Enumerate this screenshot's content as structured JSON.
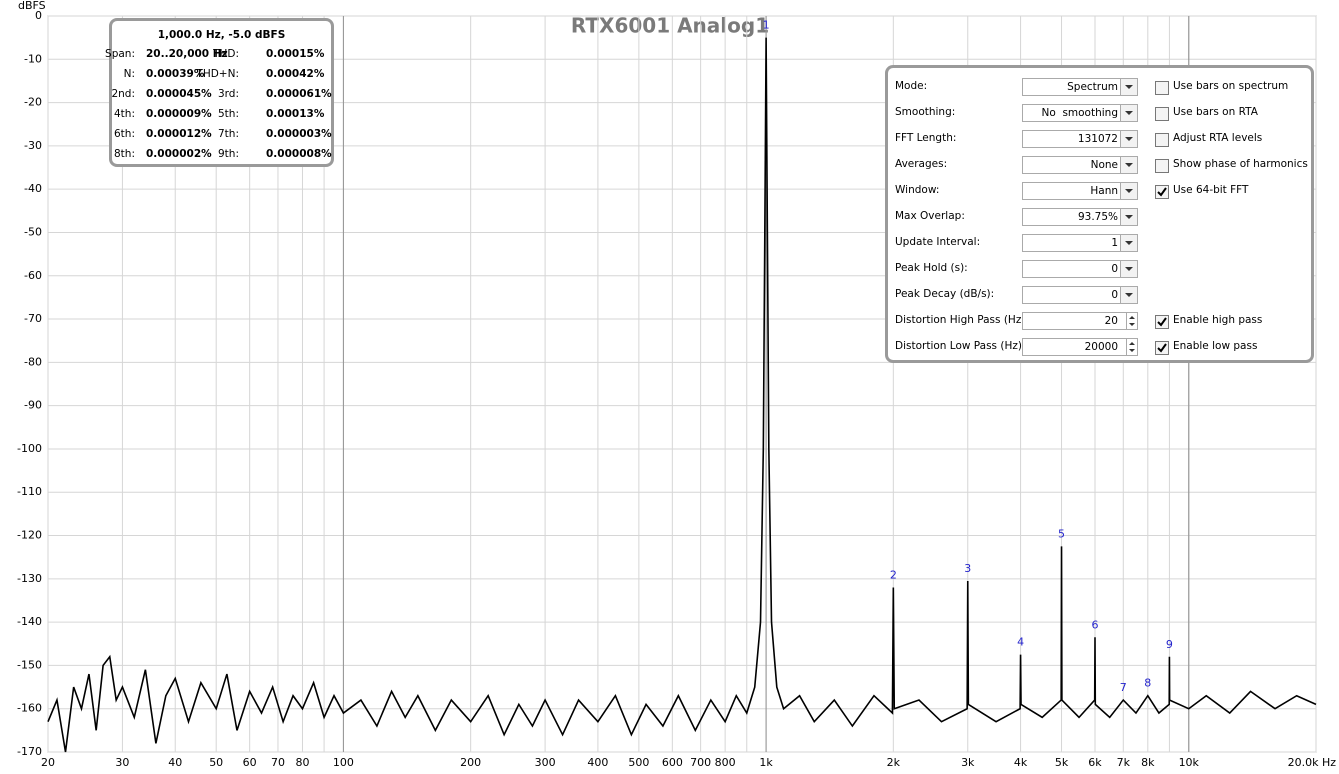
{
  "chart_data": {
    "type": "line",
    "title": "RTX6001 Analog1",
    "y_label": "dBFS",
    "log_x": true,
    "grid": true,
    "xlim": [
      20,
      20000
    ],
    "ylim": [
      -170,
      0
    ],
    "xticks": [
      20,
      30,
      40,
      50,
      60,
      70,
      80,
      100,
      200,
      300,
      400,
      500,
      600,
      700,
      {
        "value": 800,
        "label": "800"
      },
      {
        "value": 1000,
        "label": "1k"
      },
      {
        "value": 2000,
        "label": "2k"
      },
      {
        "value": 3000,
        "label": "3k"
      },
      {
        "value": 4000,
        "label": "4k"
      },
      {
        "value": 5000,
        "label": "5k"
      },
      {
        "value": 6000,
        "label": "6k"
      },
      {
        "value": 7000,
        "label": "7k"
      },
      {
        "value": 8000,
        "label": "8k"
      },
      {
        "value": 10000,
        "label": "10k"
      },
      {
        "value": 20000,
        "label": "20.0k Hz"
      }
    ],
    "minor_xticks": [
      90,
      900,
      9000
    ],
    "major_xticks": [
      100,
      1000,
      10000
    ],
    "yticks": [
      0,
      -10,
      -20,
      -30,
      -40,
      -50,
      -60,
      -70,
      -80,
      -90,
      -100,
      -110,
      -120,
      -130,
      -140,
      -150,
      -160,
      -170
    ],
    "x": [
      20,
      21,
      22,
      23,
      24,
      25,
      26,
      27,
      28,
      29,
      30,
      32,
      34,
      36,
      38,
      40,
      43,
      46,
      50,
      53,
      56,
      60,
      64,
      68,
      72,
      76,
      80,
      85,
      90,
      95,
      100,
      110,
      120,
      130,
      140,
      150,
      165,
      180,
      200,
      220,
      240,
      260,
      280,
      300,
      330,
      360,
      400,
      440,
      480,
      520,
      570,
      620,
      680,
      740,
      800,
      850,
      900,
      940,
      970,
      985,
      993,
      1000,
      1007,
      1015,
      1030,
      1060,
      1100,
      1200,
      1300,
      1450,
      1600,
      1800,
      1990,
      2000,
      2010,
      2300,
      2600,
      2990,
      3000,
      3010,
      3500,
      3990,
      4000,
      4010,
      4500,
      4990,
      5000,
      5010,
      5500,
      5990,
      6000,
      6010,
      6500,
      7000,
      7500,
      8000,
      8500,
      8990,
      9000,
      9010,
      10000,
      11000,
      12500,
      14000,
      16000,
      18000,
      20000
    ],
    "series": [
      {
        "name": "RTX6001 Analog1",
        "color": "#000000",
        "values": [
          -163,
          -158,
          -170,
          -155,
          -160,
          -152,
          -165,
          -150,
          -148,
          -158,
          -155,
          -162,
          -151,
          -168,
          -157,
          -153,
          -163,
          -154,
          -160,
          -152,
          -165,
          -156,
          -161,
          -155,
          -163,
          -157,
          -160,
          -154,
          -162,
          -157,
          -161,
          -158,
          -164,
          -156,
          -162,
          -157,
          -165,
          -158,
          -163,
          -157,
          -166,
          -159,
          -164,
          -158,
          -166,
          -158,
          -163,
          -157,
          -166,
          -159,
          -164,
          -157,
          -165,
          -158,
          -163,
          -157,
          -161,
          -155,
          -140,
          -100,
          -50,
          -5,
          -50,
          -100,
          -140,
          -155,
          -160,
          -157,
          -163,
          -158,
          -164,
          -157,
          -161,
          -132,
          -160,
          -158,
          -163,
          -160,
          -130.5,
          -159,
          -163,
          -160,
          -147.5,
          -159,
          -162,
          -158,
          -122.5,
          -158,
          -162,
          -158,
          -143.5,
          -159,
          -162,
          -158,
          -161,
          -157,
          -161,
          -159,
          -148,
          -158,
          -160,
          -157,
          -161,
          -156,
          -160,
          -157,
          -159
        ]
      }
    ],
    "harmonics": [
      {
        "label": "1",
        "freq": 1000,
        "level": -5
      },
      {
        "label": "2",
        "freq": 2000,
        "level": -132
      },
      {
        "label": "3",
        "freq": 3000,
        "level": -130.5
      },
      {
        "label": "4",
        "freq": 4000,
        "level": -147.5
      },
      {
        "label": "5",
        "freq": 5000,
        "level": -122.5
      },
      {
        "label": "6",
        "freq": 6000,
        "level": -143.5
      },
      {
        "label": "7",
        "freq": 7000,
        "level": -158
      },
      {
        "label": "8",
        "freq": 8000,
        "level": -157
      },
      {
        "label": "9",
        "freq": 9000,
        "level": -148
      }
    ]
  },
  "info_panel": {
    "header": "1,000.0 Hz, -5.0 dBFS",
    "rows": [
      [
        {
          "label": "Span:",
          "value": "20..20,000 Hz"
        },
        {
          "label": "THD:",
          "value": "0.00015%"
        }
      ],
      [
        {
          "label": "N:",
          "value": "0.00039%"
        },
        {
          "label": "THD+N:",
          "value": "0.00042%"
        }
      ],
      [
        {
          "label": "2nd:",
          "value": "0.000045%"
        },
        {
          "label": "3rd:",
          "value": "0.000061%"
        }
      ],
      [
        {
          "label": "4th:",
          "value": "0.000009%"
        },
        {
          "label": "5th:",
          "value": "0.00013%"
        }
      ],
      [
        {
          "label": "6th:",
          "value": "0.000012%"
        },
        {
          "label": "7th:",
          "value": "0.000003%"
        }
      ],
      [
        {
          "label": "8th:",
          "value": "0.000002%"
        },
        {
          "label": "9th:",
          "value": "0.000008%"
        }
      ]
    ]
  },
  "settings_panel": {
    "rows": [
      {
        "label": "Mode:",
        "value": "Spectrum",
        "control": "dropdown",
        "option": {
          "label": "Use bars on spectrum",
          "checked": false
        }
      },
      {
        "label": "Smoothing:",
        "value": "No  smoothing",
        "control": "dropdown",
        "option": {
          "label": "Use bars on RTA",
          "checked": false
        }
      },
      {
        "label": "FFT Length:",
        "value": "131072",
        "control": "dropdown",
        "option": {
          "label": "Adjust RTA levels",
          "checked": false
        }
      },
      {
        "label": "Averages:",
        "value": "None",
        "control": "dropdown",
        "option": {
          "label": "Show phase of harmonics",
          "checked": false
        }
      },
      {
        "label": "Window:",
        "value": "Hann",
        "control": "dropdown",
        "option": {
          "label": "Use 64-bit FFT",
          "checked": true
        }
      },
      {
        "label": "Max Overlap:",
        "value": "93.75%",
        "control": "dropdown"
      },
      {
        "label": "Update Interval:",
        "value": "1",
        "control": "dropdown"
      },
      {
        "label": "Peak Hold (s):",
        "value": "0",
        "control": "dropdown"
      },
      {
        "label": "Peak Decay (dB/s):",
        "value": "0",
        "control": "dropdown"
      },
      {
        "label": "Distortion High Pass (Hz):",
        "value": "20",
        "control": "spin",
        "option": {
          "label": "Enable high pass",
          "checked": true
        }
      },
      {
        "label": "Distortion Low Pass (Hz):",
        "value": "20000",
        "control": "spin",
        "option": {
          "label": "Enable low pass",
          "checked": true
        }
      }
    ]
  }
}
